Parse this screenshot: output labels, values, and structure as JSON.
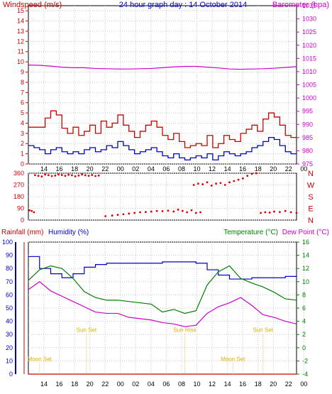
{
  "chart_data": [
    {
      "type": "line",
      "title": "24 hour graph day : 14 October 2014",
      "ylabel_left": "Windspeed (m/s)",
      "ylabel_right": "Barometer (hpa)",
      "xticks": [
        "14",
        "16",
        "18",
        "20",
        "22",
        "00",
        "02",
        "04",
        "06",
        "08",
        "10",
        "12",
        "14",
        "16",
        "18",
        "20",
        "22",
        "00"
      ],
      "y_left_ticks": [
        "0",
        "1",
        "2",
        "3",
        "4",
        "5",
        "6",
        "7",
        "8",
        "9",
        "10",
        "11",
        "12",
        "13",
        "14",
        "15"
      ],
      "y_right_ticks": [
        "975",
        "980",
        "985",
        "990",
        "995",
        "1000",
        "1005",
        "1010",
        "1015",
        "1020",
        "1025",
        "1030",
        "1035"
      ],
      "ylim_left": [
        0,
        15.5
      ],
      "ylim_right": [
        975,
        1035
      ],
      "grid": true,
      "series": [
        {
          "name": "Barometer",
          "axis": "right",
          "color": "#cc00cc",
          "x": [
            0,
            1,
            2,
            3,
            4,
            5,
            6,
            7,
            8,
            9,
            10,
            11,
            12,
            13,
            14,
            15,
            16,
            17,
            18,
            19,
            20,
            21,
            22,
            23,
            24
          ],
          "values": [
            1012.5,
            1012.4,
            1012.1,
            1011.7,
            1011.5,
            1011.5,
            1011.2,
            1011.1,
            1011.0,
            1011.0,
            1011.1,
            1011.2,
            1011.5,
            1011.8,
            1012.0,
            1012.0,
            1011.7,
            1011.4,
            1011.0,
            1010.9,
            1011.0,
            1011.1,
            1011.3,
            1011.6,
            1011.9
          ]
        },
        {
          "name": "Wind Gust",
          "axis": "left",
          "color": "#cc0000",
          "x": [
            0,
            0.5,
            1,
            1.5,
            2,
            2.5,
            3,
            3.5,
            4,
            4.5,
            5,
            5.5,
            6,
            6.5,
            7,
            7.5,
            8,
            8.5,
            9,
            9.5,
            10,
            10.5,
            11,
            11.5,
            12,
            12.5,
            13,
            13.5,
            14,
            14.5,
            15,
            15.5,
            16,
            16.5,
            17,
            17.5,
            18,
            18.5,
            19,
            19.5,
            20,
            20.5,
            21,
            21.5,
            22,
            22.5,
            23,
            23.5,
            24
          ],
          "values": [
            3.6,
            3.6,
            3.6,
            4.5,
            5.2,
            4.8,
            3.5,
            3.0,
            3.6,
            2.8,
            3.2,
            3.8,
            3.0,
            4.2,
            3.6,
            4.0,
            4.8,
            3.8,
            3.2,
            2.6,
            3.2,
            3.8,
            4.2,
            3.6,
            2.8,
            2.4,
            3.0,
            2.2,
            1.6,
            1.8,
            2.0,
            1.8,
            2.8,
            1.6,
            2.0,
            2.8,
            2.4,
            2.2,
            3.0,
            3.4,
            3.8,
            3.2,
            4.4,
            5.0,
            4.6,
            3.8,
            2.8,
            2.6,
            2.4
          ]
        },
        {
          "name": "Wind Speed",
          "axis": "left",
          "color": "#0000cc",
          "x": [
            0,
            0.5,
            1,
            1.5,
            2,
            2.5,
            3,
            3.5,
            4,
            4.5,
            5,
            5.5,
            6,
            6.5,
            7,
            7.5,
            8,
            8.5,
            9,
            9.5,
            10,
            10.5,
            11,
            11.5,
            12,
            12.5,
            13,
            13.5,
            14,
            14.5,
            15,
            15.5,
            16,
            16.5,
            17,
            17.5,
            18,
            18.5,
            19,
            19.5,
            20,
            20.5,
            21,
            21.5,
            22,
            22.5,
            23,
            23.5,
            24
          ],
          "values": [
            1.8,
            1.6,
            1.4,
            1.0,
            1.4,
            1.6,
            1.2,
            1.0,
            1.2,
            1.0,
            1.4,
            1.6,
            1.2,
            1.4,
            1.8,
            1.6,
            2.2,
            1.8,
            1.4,
            1.0,
            1.2,
            1.4,
            1.6,
            1.2,
            0.8,
            0.6,
            1.0,
            0.6,
            0.4,
            0.6,
            0.8,
            0.6,
            1.0,
            0.4,
            0.8,
            1.2,
            1.0,
            0.8,
            1.0,
            1.2,
            1.6,
            1.8,
            2.2,
            2.6,
            2.4,
            1.8,
            1.2,
            1.0,
            1.0
          ]
        }
      ]
    },
    {
      "type": "scatter",
      "title": "",
      "y_left_ticks": [
        "0",
        "90",
        "180",
        "270",
        "360"
      ],
      "y_right_labels": [
        "N",
        "W",
        "S",
        "E",
        "N"
      ],
      "ylim": [
        0,
        360
      ],
      "grid": true,
      "series": [
        {
          "name": "Wind Direction",
          "color": "#dd0000",
          "x": [
            0.6,
            0.9,
            1.2,
            1.5,
            1.8,
            2.1,
            2.4,
            2.7,
            3.0,
            3.3,
            3.6,
            3.9,
            4.2,
            4.5,
            4.8,
            5.1,
            5.4,
            5.7,
            6.0,
            6.3,
            0.1,
            0.3,
            0.5,
            6.9,
            7.5,
            8.0,
            8.5,
            9.0,
            9.5,
            10.0,
            10.5,
            11.0,
            11.5,
            12.0,
            12.5,
            13.0,
            13.4,
            13.8,
            14.2,
            14.6,
            15.0,
            15.4,
            14.8,
            15.2,
            15.6,
            16.0,
            16.4,
            16.8,
            17.2,
            17.6,
            18.0,
            18.4,
            18.8,
            19.2,
            19.6,
            20.0,
            20.4,
            20.8,
            21.2,
            21.6,
            22.0,
            22.5,
            23.0,
            23.5,
            24.0
          ],
          "values": [
            345,
            340,
            335,
            350,
            345,
            338,
            342,
            350,
            346,
            340,
            348,
            344,
            336,
            342,
            350,
            344,
            340,
            346,
            338,
            342,
            75,
            70,
            60,
            30,
            35,
            40,
            45,
            50,
            55,
            60,
            62,
            65,
            70,
            68,
            72,
            66,
            80,
            70,
            60,
            75,
            55,
            60,
            270,
            280,
            275,
            290,
            265,
            280,
            285,
            270,
            290,
            300,
            310,
            320,
            340,
            355,
            360,
            55,
            60,
            58,
            65,
            62,
            70,
            60,
            55
          ]
        }
      ]
    },
    {
      "type": "line",
      "title": "",
      "ylabel_left": "Rainfall (mm)  Humidity (%)",
      "ylabel_right": "Temperature (°C)",
      "ylabel_right2": "Dew Point (°C)",
      "y_left_ticks": [
        "0",
        "10",
        "20",
        "30",
        "40",
        "50",
        "60",
        "70",
        "80",
        "90",
        "100"
      ],
      "y_right_ticks": [
        "-4",
        "-2",
        "0",
        "2",
        "4",
        "6",
        "8",
        "10",
        "12",
        "14",
        "16"
      ],
      "ylim_left": [
        0,
        100
      ],
      "ylim_right": [
        -4,
        16
      ],
      "grid": true,
      "annotations": [
        {
          "text": "Sun Set",
          "x": 5.2,
          "y": 32
        },
        {
          "text": "Sun Rise",
          "x": 14.0,
          "y": 32
        },
        {
          "text": "Sun Set",
          "x": 21.0,
          "y": 32
        },
        {
          "text": "Moon Set",
          "x": 1.0,
          "y": 10
        },
        {
          "text": "Moon Set",
          "x": 18.3,
          "y": 10
        }
      ],
      "series": [
        {
          "name": "Humidity",
          "axis": "left",
          "color": "#0000cc",
          "x": [
            0,
            1,
            2,
            3,
            4,
            5,
            6,
            7,
            8,
            9,
            10,
            11,
            12,
            13,
            14,
            15,
            16,
            17,
            18,
            19,
            20,
            21,
            22,
            23,
            24
          ],
          "values": [
            89,
            80,
            76,
            73,
            76,
            81,
            83,
            84,
            84,
            84,
            84,
            84,
            85,
            85,
            85,
            84,
            79,
            75,
            72,
            72,
            73,
            73,
            73,
            74,
            75
          ]
        },
        {
          "name": "Temperature",
          "axis": "right",
          "color": "#008000",
          "x": [
            0,
            1,
            2,
            3,
            4,
            5,
            6,
            7,
            8,
            9,
            10,
            11,
            12,
            13,
            14,
            15,
            16,
            17,
            18,
            19,
            20,
            21,
            22,
            23,
            24
          ],
          "values": [
            10.2,
            11.8,
            12.4,
            12.0,
            10.5,
            8.5,
            7.6,
            7.2,
            7.2,
            7.0,
            6.8,
            6.6,
            5.4,
            5.8,
            5.2,
            5.6,
            9.5,
            11.5,
            12.4,
            10.5,
            9.8,
            9.2,
            8.4,
            7.4,
            7.2
          ]
        },
        {
          "name": "Dew Point",
          "axis": "right",
          "color": "#cc00cc",
          "x": [
            0,
            1,
            2,
            3,
            4,
            5,
            6,
            7,
            8,
            9,
            10,
            11,
            12,
            13,
            14,
            15,
            16,
            17,
            18,
            19,
            20,
            21,
            22,
            23,
            24
          ],
          "values": [
            8.8,
            10.0,
            8.6,
            7.8,
            7.0,
            6.2,
            5.4,
            5.2,
            5.2,
            4.6,
            4.4,
            4.2,
            3.8,
            3.6,
            3.2,
            3.4,
            5.2,
            6.2,
            6.8,
            7.6,
            6.4,
            5.0,
            4.6,
            4.0,
            3.6
          ]
        },
        {
          "name": "Rainfall",
          "axis": "left",
          "color": "#cc0000",
          "x": [
            0,
            24
          ],
          "values": [
            0,
            0
          ]
        }
      ]
    }
  ]
}
